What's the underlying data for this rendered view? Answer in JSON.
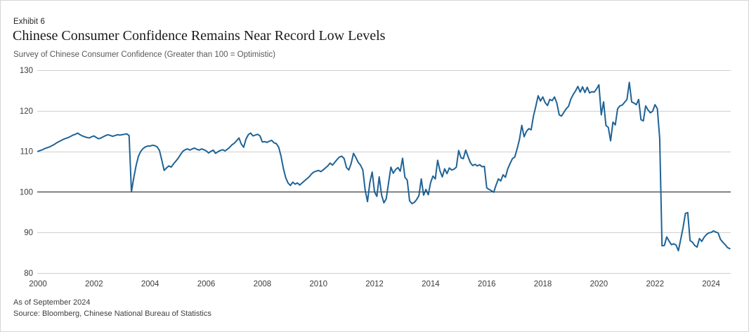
{
  "exhibit_label": "Exhibit 6",
  "title": "Chinese Consumer Confidence Remains Near Record Low Levels",
  "subtitle": "Survey of Chinese Consumer Confidence (Greater than 100 = Optimistic)",
  "footnotes": {
    "as_of": "As of September 2024",
    "source": "Source: Bloomberg, Chinese National Bureau of Statistics"
  },
  "colors": {
    "line": "#1f6396",
    "grid": "#cfcfcf",
    "reference_line": "#1a1a1a",
    "tick_text": "#3d3d3d",
    "border": "#d6d6d6"
  },
  "chart_data": {
    "type": "line",
    "title": "Chinese Consumer Confidence Remains Near Record Low Levels",
    "subtitle": "Survey of Chinese Consumer Confidence (Greater than 100 = Optimistic)",
    "xlabel": "",
    "ylabel": "",
    "ylim": [
      80,
      130
    ],
    "yticks": [
      80,
      90,
      100,
      110,
      120,
      130
    ],
    "xticks": [
      2000,
      2002,
      2004,
      2006,
      2008,
      2010,
      2012,
      2014,
      2016,
      2018,
      2020,
      2022,
      2024
    ],
    "x_range": [
      2000.0,
      2024.75
    ],
    "reference_line": 100,
    "grid": "horizontal",
    "legend": "none",
    "series": [
      {
        "name": "Survey of Chinese Consumer Confidence",
        "frequency": "monthly",
        "start_year": 2000,
        "start_month": 1,
        "end_label": "September 2024",
        "values": [
          110.0,
          110.2,
          110.4,
          110.7,
          110.9,
          111.1,
          111.4,
          111.7,
          112.1,
          112.4,
          112.7,
          113.0,
          113.2,
          113.4,
          113.7,
          114.0,
          114.2,
          114.5,
          114.1,
          113.8,
          113.6,
          113.4,
          113.3,
          113.6,
          113.8,
          113.4,
          113.1,
          113.3,
          113.6,
          113.9,
          114.1,
          113.9,
          113.7,
          113.9,
          114.1,
          114.0,
          114.1,
          114.2,
          114.3,
          113.9,
          100.0,
          103.5,
          106.5,
          108.8,
          110.0,
          110.7,
          111.1,
          111.3,
          111.3,
          111.5,
          111.4,
          111.1,
          110.2,
          107.8,
          105.3,
          105.9,
          106.4,
          106.1,
          106.9,
          107.6,
          108.3,
          109.2,
          110.0,
          110.4,
          110.6,
          110.3,
          110.6,
          110.8,
          110.5,
          110.3,
          110.6,
          110.4,
          110.1,
          109.6,
          110.0,
          110.3,
          109.5,
          109.9,
          110.2,
          110.4,
          110.1,
          110.5,
          111.0,
          111.6,
          112.0,
          112.6,
          113.3,
          111.8,
          111.0,
          113.0,
          114.1,
          114.5,
          113.8,
          114.0,
          114.2,
          113.8,
          112.3,
          112.4,
          112.2,
          112.5,
          112.7,
          112.1,
          111.9,
          111.0,
          108.8,
          105.8,
          103.5,
          102.2,
          101.6,
          102.4,
          101.9,
          102.2,
          101.7,
          102.2,
          102.7,
          103.2,
          103.7,
          104.4,
          104.9,
          105.1,
          105.3,
          105.0,
          105.4,
          105.9,
          106.4,
          107.1,
          106.6,
          107.3,
          108.0,
          108.6,
          108.8,
          108.2,
          106.0,
          105.4,
          107.0,
          109.5,
          108.5,
          107.3,
          106.6,
          105.4,
          100.4,
          97.6,
          102.3,
          104.9,
          100.0,
          98.9,
          103.7,
          99.3,
          97.3,
          98.3,
          102.2,
          106.1,
          104.6,
          105.5,
          106.0,
          105.1,
          108.3,
          103.6,
          102.9,
          97.8,
          97.1,
          97.4,
          98.1,
          99.1,
          103.2,
          99.2,
          100.6,
          99.3,
          102.3,
          103.9,
          103.2,
          107.8,
          105.2,
          103.7,
          105.7,
          104.5,
          105.9,
          105.4,
          105.6,
          106.1,
          110.2,
          108.4,
          108.2,
          110.3,
          108.7,
          107.2,
          106.5,
          106.8,
          106.4,
          106.7,
          106.2,
          106.3,
          101.0,
          100.6,
          100.3,
          99.9,
          101.7,
          103.2,
          102.7,
          104.2,
          103.6,
          105.7,
          107.0,
          108.2,
          108.6,
          110.6,
          112.9,
          116.4,
          113.6,
          114.9,
          115.6,
          115.3,
          118.7,
          121.1,
          123.7,
          122.4,
          123.4,
          122.0,
          121.3,
          122.8,
          122.5,
          123.4,
          121.9,
          119.0,
          118.7,
          119.6,
          120.5,
          121.1,
          122.9,
          124.0,
          124.9,
          126.0,
          124.6,
          125.9,
          124.5,
          125.8,
          124.4,
          124.7,
          124.6,
          125.4,
          126.4,
          119.0,
          122.2,
          116.4,
          115.9,
          112.6,
          117.2,
          116.5,
          120.5,
          121.2,
          121.4,
          122.1,
          122.8,
          127.0,
          122.2,
          121.9,
          121.5,
          122.8,
          117.8,
          117.5,
          121.2,
          120.2,
          119.5,
          119.9,
          121.5,
          120.5,
          113.2,
          86.7,
          86.8,
          88.9,
          87.9,
          87.0,
          87.2,
          86.9,
          85.5,
          88.3,
          91.2,
          94.7,
          94.9,
          88.0,
          87.6,
          86.8,
          86.4,
          88.5,
          87.8,
          88.8,
          89.5,
          89.9,
          90.0,
          90.4,
          90.1,
          89.9,
          88.3,
          87.6,
          87.0,
          86.3,
          86.0
        ]
      }
    ]
  }
}
